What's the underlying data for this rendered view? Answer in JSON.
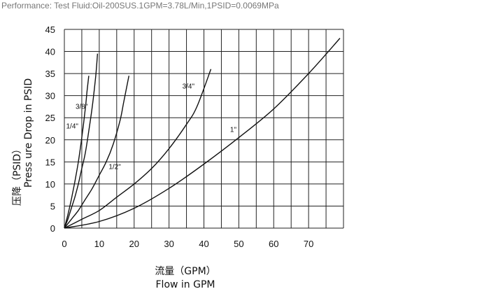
{
  "caption": "Performance: Test Fluid:Oil-200SUS.1GPM=3.78L/Min,1PSID=0.0069MPa",
  "chart_data": {
    "type": "line",
    "title": "",
    "xlabel_cn": "流量（GPM）",
    "xlabel": "Flow in GPM",
    "ylabel_cn": "压降（PSID）",
    "ylabel": "Press ure Drop in PSID",
    "xlim": [
      0,
      80
    ],
    "ylim": [
      0,
      45
    ],
    "x_ticks": [
      0,
      10,
      20,
      30,
      40,
      50,
      60,
      70
    ],
    "y_ticks": [
      0,
      5,
      10,
      15,
      20,
      25,
      30,
      35,
      40,
      45
    ],
    "grid": true,
    "series": [
      {
        "name": "1/4\"",
        "x": [
          0,
          1,
          2,
          3,
          4,
          5,
          6,
          6.5,
          7
        ],
        "y": [
          0,
          3,
          6.5,
          10.5,
          15,
          20.5,
          27,
          31,
          34.5
        ]
      },
      {
        "name": "3/8\"",
        "x": [
          0,
          1,
          2,
          3,
          4,
          5,
          6,
          7,
          8,
          9,
          9.5
        ],
        "y": [
          0,
          2,
          4.5,
          7,
          10,
          13.5,
          17,
          22,
          27.5,
          34.5,
          39.5
        ]
      },
      {
        "name": "1/2\"",
        "x": [
          0,
          2,
          4,
          6,
          8,
          10,
          12,
          14,
          16,
          17,
          18.5
        ],
        "y": [
          0,
          2,
          4,
          6.5,
          9,
          12,
          15,
          19,
          24.5,
          28.5,
          34.5
        ]
      },
      {
        "name": "3/4\"",
        "x": [
          0,
          5,
          10,
          15,
          20,
          25,
          30,
          35,
          38,
          42
        ],
        "y": [
          0,
          2,
          4,
          7,
          10,
          13.5,
          18,
          23.5,
          27.5,
          36
        ]
      },
      {
        "name": "1\"",
        "x": [
          0,
          10,
          20,
          30,
          40,
          50,
          60,
          70,
          79
        ],
        "y": [
          0,
          1.5,
          4.5,
          9,
          14.5,
          20.5,
          27,
          35,
          43
        ]
      }
    ]
  }
}
